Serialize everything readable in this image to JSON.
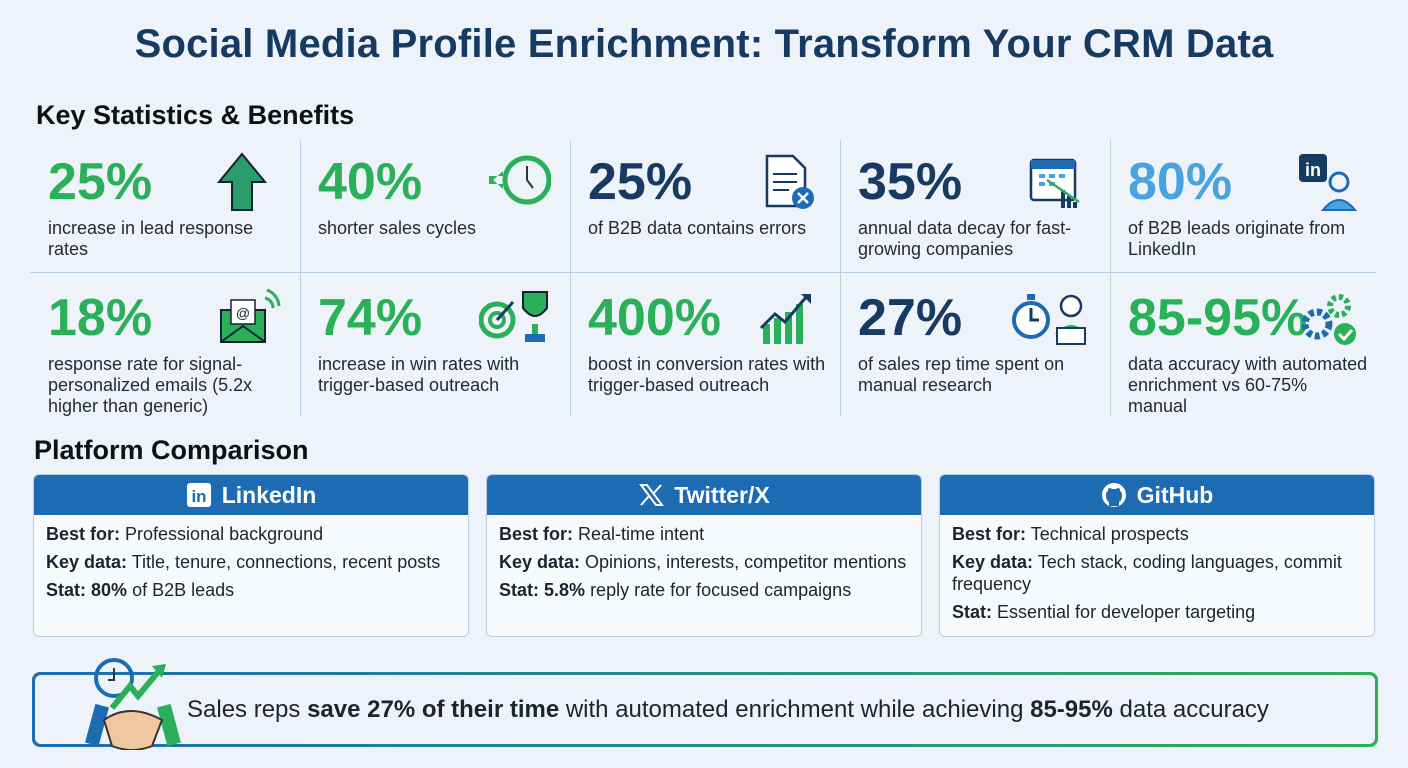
{
  "title": "Social Media Profile Enrichment: Transform Your CRM Data",
  "stats_heading": "Key Statistics & Benefits",
  "colors": {
    "green": "#2bb05a",
    "navy": "#173a63",
    "light_blue": "#4aa3df",
    "platform_blue": "#1d6cb3"
  },
  "stats": [
    {
      "value": "25%",
      "desc": "increase in lead response rates",
      "color": "#2bb05a",
      "icon": "arrow-up-icon"
    },
    {
      "value": "40%",
      "desc": "shorter sales cycles",
      "color": "#2bb05a",
      "icon": "fast-clock-icon"
    },
    {
      "value": "25%",
      "desc": "of B2B data contains errors",
      "color": "#173a63",
      "icon": "document-error-icon"
    },
    {
      "value": "35%",
      "desc": "annual data decay for fast-growing companies",
      "color": "#173a63",
      "icon": "calendar-decline-icon"
    },
    {
      "value": "80%",
      "desc": "of B2B leads originate from LinkedIn",
      "color": "#4aa3df",
      "icon": "linkedin-user-icon"
    },
    {
      "value": "18%",
      "desc": "response rate for signal-personalized emails (5.2x higher than generic)",
      "color": "#2bb05a",
      "icon": "email-signal-icon"
    },
    {
      "value": "74%",
      "desc": "increase in win rates with trigger-based outreach",
      "color": "#2bb05a",
      "icon": "target-trophy-icon"
    },
    {
      "value": "400%",
      "desc": "boost in conversion rates with trigger-based outreach",
      "color": "#2bb05a",
      "icon": "growth-chart-icon"
    },
    {
      "value": "27%",
      "desc": "of sales rep time spent on manual research",
      "color": "#173a63",
      "icon": "stopwatch-person-icon"
    },
    {
      "value": "85-95%",
      "desc": "data accuracy with automated enrichment vs 60-75% manual",
      "color": "#2bb05a",
      "icon": "gears-check-icon"
    }
  ],
  "platform_heading": "Platform Comparison",
  "platforms": [
    {
      "name": "LinkedIn",
      "icon": "linkedin-icon",
      "best_label": "Best for:",
      "best": "Professional background",
      "key_label": "Key data:",
      "key": "Title, tenure, connections, recent posts",
      "stat_label": "Stat:",
      "stat_bold": "80%",
      "stat": "of B2B leads"
    },
    {
      "name": "Twitter/X",
      "icon": "x-icon",
      "best_label": "Best for:",
      "best": "Real-time intent",
      "key_label": "Key data:",
      "key": "Opinions, interests, competitor mentions",
      "stat_label": "Stat:",
      "stat_bold": "5.8%",
      "stat": "reply rate for focused campaigns"
    },
    {
      "name": "GitHub",
      "icon": "github-icon",
      "best_label": "Best for:",
      "best": "Technical prospects",
      "key_label": "Key data:",
      "key": "Tech stack, coding languages, commit frequency",
      "stat_label": "Stat:",
      "stat_bold": "",
      "stat": "Essential for developer targeting"
    }
  ],
  "banner": {
    "t1": "Sales reps ",
    "b1": "save 27% of their time",
    "t2": " with automated enrichment while achieving ",
    "b2": "85-95%",
    "t3": " data accuracy",
    "icon": "handshake-growth-icon"
  }
}
